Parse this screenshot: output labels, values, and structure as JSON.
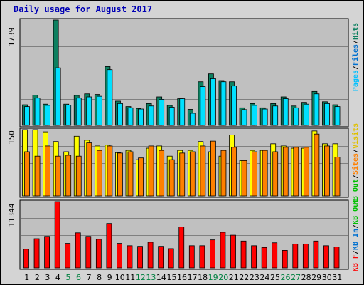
{
  "title": "Daily usage for August 2017",
  "colors": {
    "hits": "#0d8060",
    "files": "#00e0ff",
    "pages": "#00c0ff",
    "visits": "#ffff00",
    "sites": "#ff8000",
    "kbytes": "#ff0000",
    "weekend_day": "#008040",
    "week_day": "#000000",
    "panel_bg": "#c0c0c0",
    "frame_bg": "#d4d4d4",
    "grid": "#808080"
  },
  "chart_data": [
    {
      "type": "bar",
      "panel": "hits-files",
      "categories": [
        "1",
        "2",
        "3",
        "4",
        "5",
        "6",
        "7",
        "8",
        "9",
        "10",
        "11",
        "12",
        "13",
        "14",
        "15",
        "16",
        "17",
        "18",
        "19",
        "20",
        "21",
        "22",
        "23",
        "24",
        "25",
        "26",
        "27",
        "28",
        "29",
        "30",
        "31"
      ],
      "weekend_days": [
        "5",
        "6",
        "12",
        "13",
        "19",
        "20",
        "26",
        "27"
      ],
      "ymax_label": "1739",
      "ylim": [
        0,
        1739
      ],
      "series": [
        {
          "name": "Hits",
          "color_key": "hits",
          "values": [
            340,
            500,
            350,
            1739,
            350,
            495,
            520,
            510,
            970,
            400,
            310,
            280,
            360,
            470,
            330,
            440,
            265,
            720,
            850,
            740,
            720,
            290,
            360,
            290,
            360,
            470,
            320,
            380,
            560,
            390,
            340
          ]
        },
        {
          "name": "Files",
          "color_key": "files",
          "values": [
            310,
            450,
            330,
            950,
            335,
            450,
            470,
            480,
            920,
            360,
            290,
            270,
            320,
            430,
            300,
            440,
            200,
            640,
            770,
            720,
            650,
            260,
            330,
            270,
            320,
            440,
            290,
            350,
            520,
            360,
            310
          ]
        },
        {
          "name": "Pages",
          "color_key": "pages",
          "values": [
            95,
            120,
            90,
            180,
            90,
            110,
            120,
            110,
            210,
            100,
            80,
            75,
            90,
            110,
            85,
            120,
            70,
            150,
            170,
            160,
            150,
            80,
            90,
            80,
            85,
            110,
            80,
            90,
            130,
            100,
            95
          ]
        }
      ],
      "legend": [
        "Pages",
        "Files",
        "Hits"
      ]
    },
    {
      "type": "bar",
      "panel": "visits-sites",
      "categories": [
        "1",
        "2",
        "3",
        "4",
        "5",
        "6",
        "7",
        "8",
        "9",
        "10",
        "11",
        "12",
        "13",
        "14",
        "15",
        "16",
        "17",
        "18",
        "19",
        "20",
        "21",
        "22",
        "23",
        "24",
        "25",
        "26",
        "27",
        "28",
        "29",
        "30",
        "31"
      ],
      "ymax_label": "150",
      "ylim": [
        0,
        150
      ],
      "series": [
        {
          "name": "Visits",
          "color_key": "visits",
          "values": [
            150,
            150,
            145,
            123,
            100,
            135,
            126,
            113,
            115,
            98,
            103,
            82,
            108,
            113,
            90,
            103,
            103,
            123,
            100,
            90,
            138,
            80,
            103,
            103,
            118,
            113,
            108,
            108,
            147,
            118,
            118
          ]
        },
        {
          "name": "Sites",
          "color_key": "sites",
          "values": [
            100,
            90,
            113,
            90,
            92,
            90,
            120,
            103,
            113,
            97,
            100,
            86,
            113,
            103,
            82,
            97,
            100,
            113,
            124,
            103,
            110,
            80,
            100,
            103,
            100,
            110,
            110,
            110,
            140,
            113,
            88
          ]
        }
      ],
      "legend": [
        "Visits",
        "Sites",
        "Out"
      ]
    },
    {
      "type": "bar",
      "panel": "kbytes",
      "categories": [
        "1",
        "2",
        "3",
        "4",
        "5",
        "6",
        "7",
        "8",
        "9",
        "10",
        "11",
        "12",
        "13",
        "14",
        "15",
        "16",
        "17",
        "18",
        "19",
        "20",
        "21",
        "22",
        "23",
        "24",
        "25",
        "26",
        "27",
        "28",
        "29",
        "30",
        "31"
      ],
      "ymax_label": "11344",
      "ylim": [
        0,
        11344
      ],
      "series": [
        {
          "name": "KB F",
          "color_key": "kbytes",
          "values": [
            3200,
            5000,
            5400,
            11344,
            4200,
            6000,
            5400,
            4900,
            7600,
            4200,
            3800,
            3700,
            4400,
            3700,
            3300,
            7000,
            3800,
            3800,
            4800,
            6100,
            5600,
            4600,
            3800,
            3500,
            4300,
            3000,
            4100,
            4100,
            4600,
            3800,
            3600
          ]
        }
      ],
      "legend": [
        "KB F",
        "KB In",
        "KB Out"
      ]
    }
  ],
  "legend_labels": {
    "pages": "Pages",
    "files": "Files",
    "hits": "Hits",
    "sites": "Sites",
    "visits": "Visits",
    "kbf": "KB F",
    "kbin": "KB In",
    "kbout": "KB Out",
    "slash": "/"
  }
}
